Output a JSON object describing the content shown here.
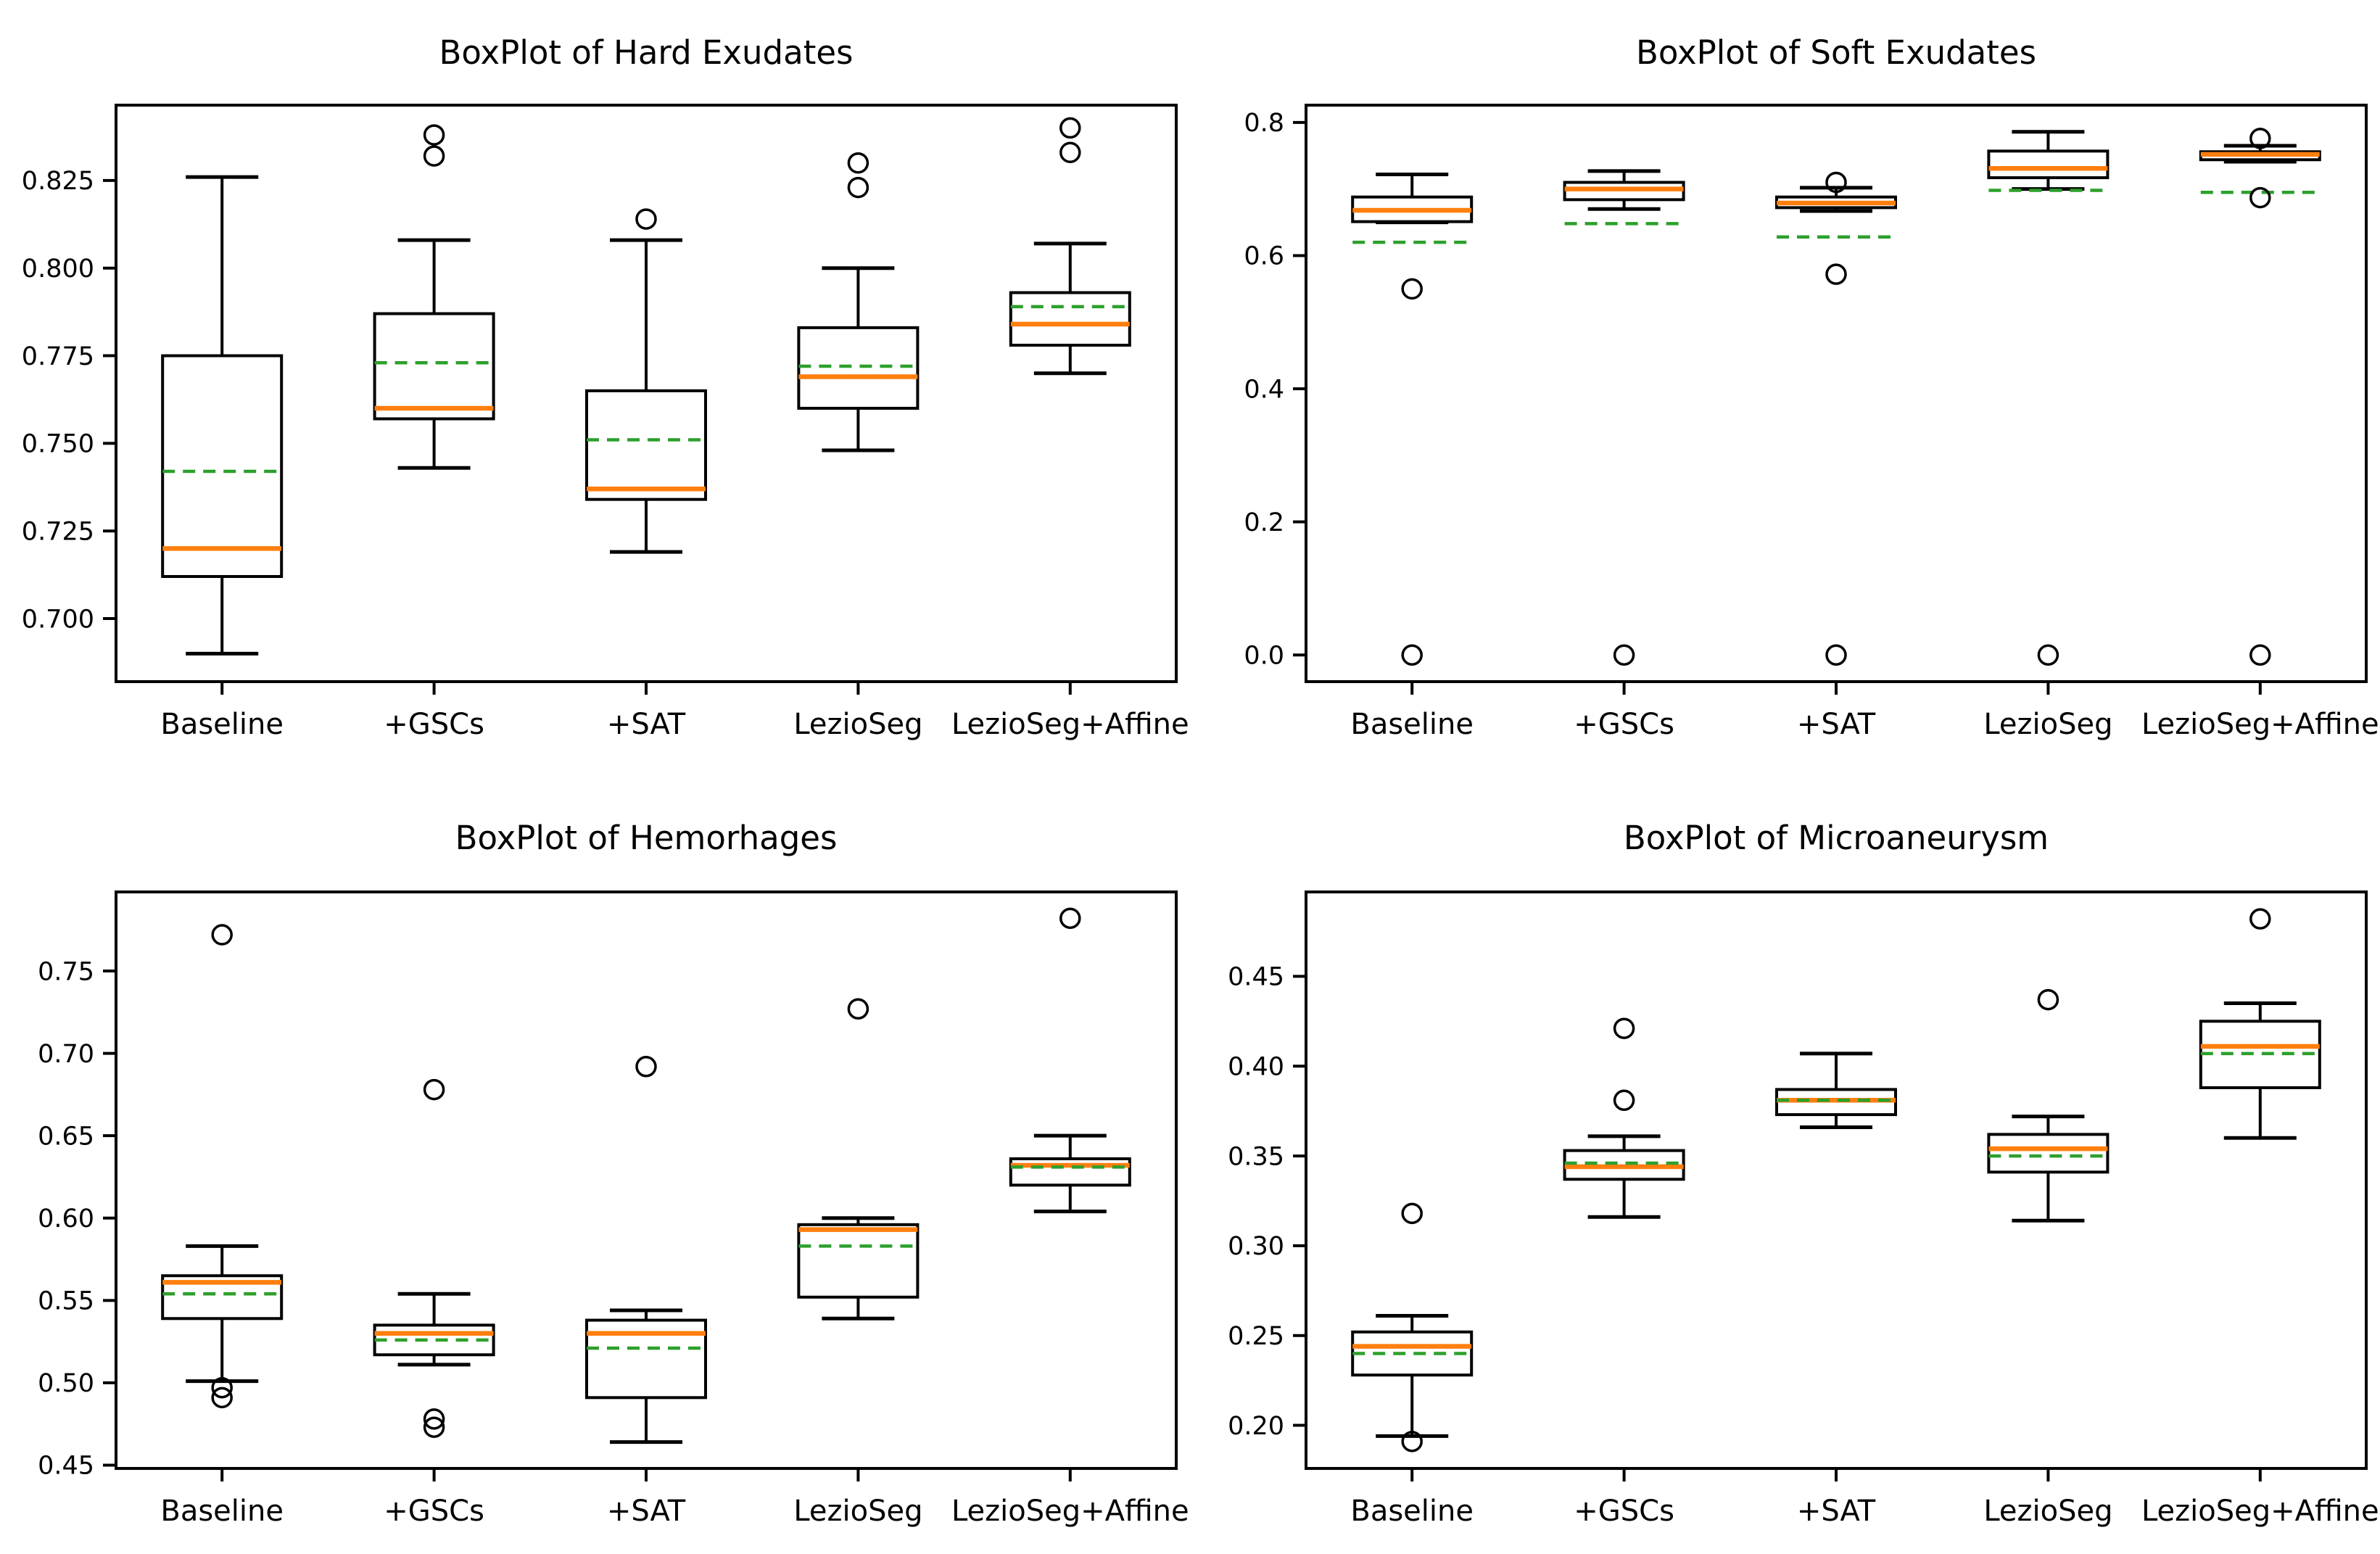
{
  "figure": {
    "background": "#ffffff",
    "colors": {
      "median": "#ff7f0e",
      "mean": "#2ca02c",
      "line": "#000000"
    }
  },
  "categories": [
    "Baseline",
    "+GSCs",
    "+SAT",
    "LezioSeg",
    "LezioSeg+Affine"
  ],
  "chart_data": [
    {
      "type": "box",
      "title": "BoxPlot of Hard Exudates",
      "categories": [
        "Baseline",
        "+GSCs",
        "+SAT",
        "LezioSeg",
        "LezioSeg+Affine"
      ],
      "ylim": [
        0.682,
        0.8465
      ],
      "yticks": [
        0.7,
        0.725,
        0.75,
        0.775,
        0.8,
        0.825
      ],
      "ytick_labels": [
        "0.700",
        "0.725",
        "0.750",
        "0.775",
        "0.800",
        "0.825"
      ],
      "legend": "none",
      "grid": false,
      "series": [
        {
          "label": "Baseline",
          "whislo": 0.69,
          "q1": 0.712,
          "med": 0.72,
          "mean": 0.742,
          "q3": 0.775,
          "whishi": 0.826,
          "outliers": []
        },
        {
          "label": "+GSCs",
          "whislo": 0.743,
          "q1": 0.757,
          "med": 0.76,
          "mean": 0.773,
          "q3": 0.787,
          "whishi": 0.808,
          "outliers": [
            0.838,
            0.832
          ]
        },
        {
          "label": "+SAT",
          "whislo": 0.719,
          "q1": 0.734,
          "med": 0.737,
          "mean": 0.751,
          "q3": 0.765,
          "whishi": 0.808,
          "outliers": [
            0.814
          ]
        },
        {
          "label": "LezioSeg",
          "whislo": 0.748,
          "q1": 0.76,
          "med": 0.769,
          "mean": 0.772,
          "q3": 0.783,
          "whishi": 0.8,
          "outliers": [
            0.83,
            0.823
          ]
        },
        {
          "label": "LezioSeg+Affine",
          "whislo": 0.77,
          "q1": 0.778,
          "med": 0.784,
          "mean": 0.789,
          "q3": 0.793,
          "whishi": 0.807,
          "outliers": [
            0.84,
            0.833
          ]
        }
      ]
    },
    {
      "type": "box",
      "title": "BoxPlot of Soft Exudates",
      "categories": [
        "Baseline",
        "+GSCs",
        "+SAT",
        "LezioSeg",
        "LezioSeg+Affine"
      ],
      "ylim": [
        -0.04,
        0.826
      ],
      "yticks": [
        0.0,
        0.2,
        0.4,
        0.6,
        0.8
      ],
      "ytick_labels": [
        "0.0",
        "0.2",
        "0.4",
        "0.6",
        "0.8"
      ],
      "legend": "none",
      "grid": false,
      "series": [
        {
          "label": "Baseline",
          "whislo": 0.65,
          "q1": 0.651,
          "med": 0.668,
          "mean": 0.62,
          "q3": 0.688,
          "whishi": 0.722,
          "outliers": [
            0.55,
            0.0
          ]
        },
        {
          "label": "+GSCs",
          "whislo": 0.67,
          "q1": 0.684,
          "med": 0.7,
          "mean": 0.648,
          "q3": 0.71,
          "whishi": 0.727,
          "outliers": [
            0.0
          ]
        },
        {
          "label": "+SAT",
          "whislo": 0.667,
          "q1": 0.672,
          "med": 0.679,
          "mean": 0.628,
          "q3": 0.688,
          "whishi": 0.702,
          "outliers": [
            0.71,
            0.572,
            0.0
          ]
        },
        {
          "label": "LezioSeg",
          "whislo": 0.7,
          "q1": 0.717,
          "med": 0.731,
          "mean": 0.698,
          "q3": 0.757,
          "whishi": 0.786,
          "outliers": [
            0.0
          ]
        },
        {
          "label": "LezioSeg+Affine",
          "whislo": 0.741,
          "q1": 0.744,
          "med": 0.752,
          "mean": 0.695,
          "q3": 0.756,
          "whishi": 0.765,
          "outliers": [
            0.776,
            0.687,
            0.0
          ]
        }
      ]
    },
    {
      "type": "box",
      "title": "BoxPlot of Hemorhages",
      "categories": [
        "Baseline",
        "+GSCs",
        "+SAT",
        "LezioSeg",
        "LezioSeg+Affine"
      ],
      "ylim": [
        0.448,
        0.798
      ],
      "yticks": [
        0.45,
        0.5,
        0.55,
        0.6,
        0.65,
        0.7,
        0.75
      ],
      "ytick_labels": [
        "0.45",
        "0.50",
        "0.55",
        "0.60",
        "0.65",
        "0.70",
        "0.75"
      ],
      "legend": "none",
      "grid": false,
      "series": [
        {
          "label": "Baseline",
          "whislo": 0.501,
          "q1": 0.539,
          "med": 0.561,
          "mean": 0.554,
          "q3": 0.565,
          "whishi": 0.583,
          "outliers": [
            0.772,
            0.497,
            0.491
          ]
        },
        {
          "label": "+GSCs",
          "whislo": 0.511,
          "q1": 0.517,
          "med": 0.53,
          "mean": 0.526,
          "q3": 0.535,
          "whishi": 0.554,
          "outliers": [
            0.678,
            0.478,
            0.473
          ]
        },
        {
          "label": "+SAT",
          "whislo": 0.464,
          "q1": 0.491,
          "med": 0.53,
          "mean": 0.521,
          "q3": 0.538,
          "whishi": 0.544,
          "outliers": [
            0.692
          ]
        },
        {
          "label": "LezioSeg",
          "whislo": 0.539,
          "q1": 0.552,
          "med": 0.593,
          "mean": 0.583,
          "q3": 0.596,
          "whishi": 0.6,
          "outliers": [
            0.727
          ]
        },
        {
          "label": "LezioSeg+Affine",
          "whislo": 0.604,
          "q1": 0.62,
          "med": 0.632,
          "mean": 0.631,
          "q3": 0.636,
          "whishi": 0.65,
          "outliers": [
            0.782
          ]
        }
      ]
    },
    {
      "type": "box",
      "title": "BoxPlot of Microaneurysm",
      "categories": [
        "Baseline",
        "+GSCs",
        "+SAT",
        "LezioSeg",
        "LezioSeg+Affine"
      ],
      "ylim": [
        0.176,
        0.497
      ],
      "yticks": [
        0.2,
        0.25,
        0.3,
        0.35,
        0.4,
        0.45
      ],
      "ytick_labels": [
        "0.20",
        "0.25",
        "0.30",
        "0.35",
        "0.40",
        "0.45"
      ],
      "legend": "none",
      "grid": false,
      "series": [
        {
          "label": "Baseline",
          "whislo": 0.194,
          "q1": 0.228,
          "med": 0.244,
          "mean": 0.24,
          "q3": 0.252,
          "whishi": 0.261,
          "outliers": [
            0.318,
            0.191
          ]
        },
        {
          "label": "+GSCs",
          "whislo": 0.316,
          "q1": 0.337,
          "med": 0.344,
          "mean": 0.346,
          "q3": 0.353,
          "whishi": 0.361,
          "outliers": [
            0.421,
            0.381
          ]
        },
        {
          "label": "+SAT",
          "whislo": 0.366,
          "q1": 0.373,
          "med": 0.381,
          "mean": 0.381,
          "q3": 0.387,
          "whishi": 0.407,
          "outliers": []
        },
        {
          "label": "LezioSeg",
          "whislo": 0.314,
          "q1": 0.341,
          "med": 0.354,
          "mean": 0.35,
          "q3": 0.362,
          "whishi": 0.372,
          "outliers": [
            0.437
          ]
        },
        {
          "label": "LezioSeg+Affine",
          "whislo": 0.36,
          "q1": 0.388,
          "med": 0.411,
          "mean": 0.407,
          "q3": 0.425,
          "whishi": 0.435,
          "outliers": [
            0.482
          ]
        }
      ]
    }
  ]
}
